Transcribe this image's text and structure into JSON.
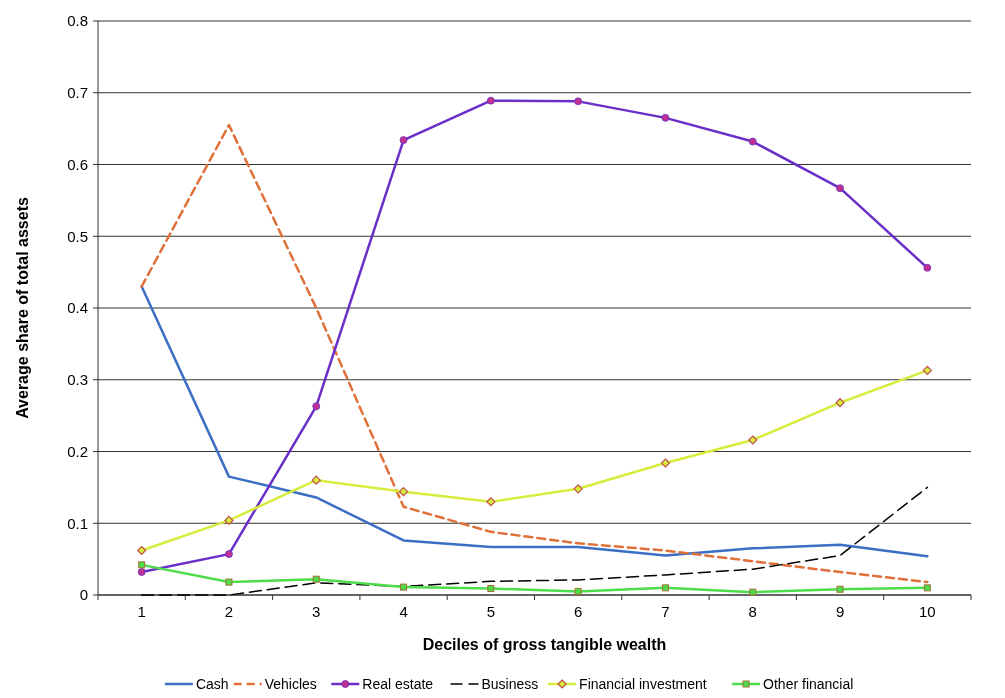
{
  "chart_data": {
    "type": "line",
    "xlabel": "Deciles of gross tangible wealth",
    "ylabel": "Average share of total assets",
    "categories": [
      "1",
      "2",
      "3",
      "4",
      "5",
      "6",
      "7",
      "8",
      "9",
      "10"
    ],
    "ylim": [
      0,
      0.8
    ],
    "yticks": [
      {
        "value": 0,
        "label": "0"
      },
      {
        "value": 0.1,
        "label": "0.1"
      },
      {
        "value": 0.2,
        "label": "0.2"
      },
      {
        "value": 0.3,
        "label": "0.3"
      },
      {
        "value": 0.4,
        "label": "0.4"
      },
      {
        "value": 0.5,
        "label": "0.5"
      },
      {
        "value": 0.6,
        "label": "0.6"
      },
      {
        "value": 0.7,
        "label": "0.7"
      },
      {
        "value": 0.8,
        "label": "0.8"
      }
    ],
    "grid": "y",
    "legend": "bottom",
    "series": [
      {
        "name": "Cash",
        "color": "#3a6fc4",
        "marker": "none",
        "line_style": "solid",
        "values": [
          0.43,
          0.165,
          0.136,
          0.076,
          0.067,
          0.067,
          0.055,
          0.065,
          0.07,
          0.054
        ]
      },
      {
        "name": "Vehicles",
        "color": "#e0703a",
        "marker": "none",
        "line_style": "dashed",
        "values": [
          0.43,
          0.655,
          0.4,
          0.123,
          0.088,
          0.072,
          0.062,
          0.047,
          0.032,
          0.018
        ]
      },
      {
        "name": "Real estate",
        "color": "#6a2fc8",
        "marker": "circle",
        "line_style": "solid",
        "values": [
          0.032,
          0.057,
          0.263,
          0.634,
          0.689,
          0.688,
          0.665,
          0.632,
          0.567,
          0.456
        ]
      },
      {
        "name": "Business",
        "color": "#000000",
        "marker": "none",
        "line_style": "dashed",
        "values": [
          0,
          0,
          0.017,
          0.012,
          0.019,
          0.021,
          0.028,
          0.036,
          0.055,
          0.15
        ]
      },
      {
        "name": "Financial investment",
        "color": "#d8ec3c",
        "marker": "diamond",
        "line_style": "solid",
        "values": [
          0.062,
          0.104,
          0.16,
          0.144,
          0.13,
          0.148,
          0.184,
          0.216,
          0.268,
          0.313
        ]
      },
      {
        "name": "Other financial",
        "color": "#4ddc4c",
        "marker": "square",
        "line_style": "solid",
        "values": [
          0.042,
          0.018,
          0.022,
          0.011,
          0.009,
          0.005,
          0.01,
          0.004,
          0.008,
          0.01
        ]
      }
    ]
  }
}
